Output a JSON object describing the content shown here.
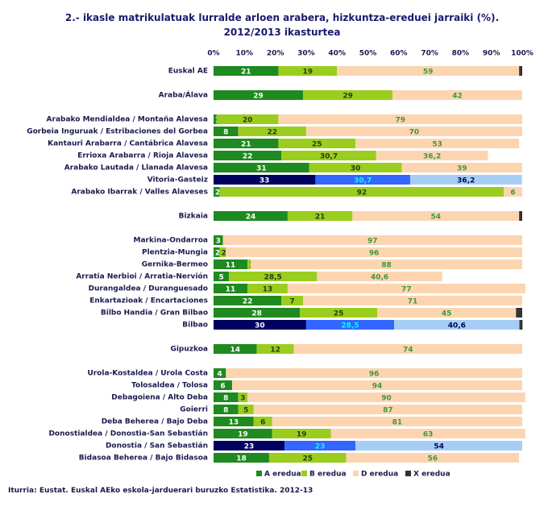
{
  "chart_data": {
    "type": "stacked-barh",
    "title": "2.- ikasle matrikulatuak lurralde arloen arabera, hizkuntza-ereduei jarraiki (%). 2012/2013 ikasturtea",
    "source": "Iturria: Eustat. Euskal AEko eskola-jarduerari buruzko Estatistika. 2012-13",
    "categories": [
      "Euskal AE",
      null,
      "Araba/Álava",
      null,
      "Arabako Mendialdea / Montaña Alavesa",
      "Gorbeia Inguruak / Estribaciones del Gorbea",
      "Kantauri Arabarra / Cantábrica Alavesa",
      "Errioxa Arabarra / Rioja Alavesa",
      "Arabako Lautada / Llanada Alavesa",
      "Vitoria-Gasteiz",
      "Arabako Ibarrak / Valles Alaveses",
      null,
      "Bizkaia",
      null,
      "Markina-Ondarroa",
      "Plentzia-Mungia",
      "Gernika-Bermeo",
      "Arratia Nerbioi / Arratia-Nervión",
      "Durangaldea / Duranguesado",
      "Enkartazioak / Encartaciones",
      "Bilbo Handia / Gran Bilbao",
      "Bilbao",
      null,
      "Gipuzkoa",
      null,
      "Urola-Kostaldea / Urola Costa",
      "Tolosaldea / Tolosa",
      "Debagoiena / Alto Deba",
      "Goierri",
      "Deba Beherea / Bajo Deba",
      "Donostialdea / Donostia-San Sebastián",
      "Donostia / San Sebastián",
      "Bidasoa Beherea / Bajo Bidasoa"
    ],
    "highlighted": [
      false,
      false,
      false,
      false,
      false,
      false,
      false,
      false,
      false,
      true,
      false,
      false,
      false,
      false,
      false,
      false,
      false,
      false,
      false,
      false,
      false,
      true,
      false,
      false,
      false,
      false,
      false,
      false,
      false,
      false,
      false,
      true,
      false
    ],
    "series": [
      {
        "name": "A eredua",
        "color": "#1f8a1f",
        "highlight_color": "#00005e",
        "label_color": "#ffffff",
        "highlight_label_color": "#ffffff",
        "values": [
          21,
          null,
          29,
          null,
          1,
          8,
          21,
          22,
          31,
          33,
          2,
          null,
          24,
          null,
          3,
          2,
          11,
          5,
          11,
          22,
          28,
          30,
          null,
          14,
          null,
          4,
          6,
          8,
          8,
          13,
          19,
          23,
          18
        ]
      },
      {
        "name": "B eredua",
        "color": "#9acd1e",
        "highlight_color": "#3366ff",
        "label_color": "#2a3a10",
        "highlight_label_color": "#00ffff",
        "values": [
          19,
          null,
          29,
          null,
          20,
          22,
          25,
          30.7,
          30,
          30.7,
          92,
          null,
          21,
          null,
          null,
          2,
          1,
          28.5,
          13,
          7,
          25,
          28.5,
          null,
          12,
          null,
          0,
          0,
          3,
          5,
          6,
          19,
          23,
          25
        ],
        "value_labels": [
          null,
          null,
          null,
          null,
          null,
          null,
          null,
          "30,7",
          null,
          "30,7",
          null,
          null,
          null,
          null,
          null,
          null,
          null,
          "28,5",
          null,
          null,
          null,
          "28,5",
          null,
          null,
          null,
          null,
          null,
          null,
          null,
          null,
          null,
          null,
          null
        ]
      },
      {
        "name": "D eredua",
        "color": "#fcd5b0",
        "highlight_color": "#a6cef5",
        "label_color": "#3a9a3a",
        "highlight_label_color": "#00005e",
        "values": [
          59,
          null,
          42,
          null,
          79,
          70,
          53,
          36.2,
          39,
          36.2,
          6,
          null,
          54,
          null,
          97,
          96,
          88,
          40.6,
          77,
          71,
          45,
          40.6,
          null,
          74,
          null,
          96,
          94,
          90,
          87,
          81,
          63,
          54,
          56
        ],
        "value_labels": [
          null,
          null,
          null,
          null,
          null,
          null,
          null,
          "36,2",
          null,
          "36,2",
          null,
          null,
          null,
          null,
          null,
          null,
          null,
          "40,6",
          null,
          null,
          null,
          "40,6",
          null,
          null,
          null,
          null,
          null,
          null,
          null,
          null,
          null,
          null,
          null
        ]
      },
      {
        "name": "X eredua",
        "color": "#333333",
        "highlight_color": "#333333",
        "values": [
          1,
          null,
          null,
          null,
          null,
          null,
          null,
          null,
          null,
          null,
          null,
          null,
          1,
          null,
          null,
          null,
          null,
          null,
          null,
          null,
          2,
          1,
          null,
          null,
          null,
          null,
          null,
          null,
          null,
          null,
          null,
          null,
          null
        ]
      }
    ],
    "xlim": [
      0,
      100
    ],
    "xticks": [
      {
        "value": 0,
        "label": "0%"
      },
      {
        "value": 10,
        "label": "10%"
      },
      {
        "value": 20,
        "label": "20%"
      },
      {
        "value": 30,
        "label": "30%"
      },
      {
        "value": 40,
        "label": "40%"
      },
      {
        "value": 50,
        "label": "50%"
      },
      {
        "value": 60,
        "label": "60%"
      },
      {
        "value": 70,
        "label": "70%"
      },
      {
        "value": 80,
        "label": "80%"
      },
      {
        "value": 90,
        "label": "90%"
      },
      {
        "value": 100,
        "label": "100%"
      }
    ],
    "grid": false,
    "legend": "bottom"
  }
}
